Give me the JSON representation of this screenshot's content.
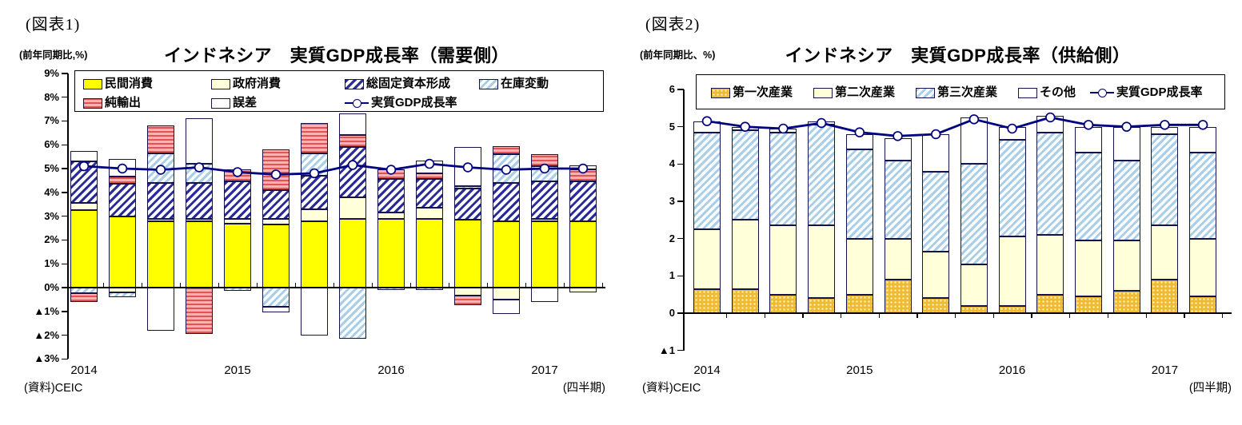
{
  "colors": {
    "line_navy": "#00007f",
    "bar_yellow": "#ffff00",
    "bar_cream": "#ffffd9",
    "hatch_navy": "#2a2a99",
    "hatch_ltblue": "#a9cfe8",
    "stripe_red": "#dd5555",
    "gold": "#eebb33"
  },
  "chart_data": [
    {
      "type": "bar",
      "stacked": true,
      "fig_label": "(図表1)",
      "unit_label": "(前年同期比,%)",
      "title": "インドネシア　実質GDP成長率（需要側）",
      "source": "(資料)CEIC",
      "freq_label": "(四半期)",
      "ylim": [
        -3,
        9
      ],
      "ytick_labels": [
        "9%",
        "8%",
        "7%",
        "6%",
        "5%",
        "4%",
        "3%",
        "2%",
        "1%",
        "0%",
        "▲1%",
        "▲2%",
        "▲3%"
      ],
      "x_tick_labels": [
        "2014",
        "2015",
        "2016",
        "2017"
      ],
      "categories": [
        "2014Q1",
        "2014Q2",
        "2014Q3",
        "2014Q4",
        "2015Q1",
        "2015Q2",
        "2015Q3",
        "2015Q4",
        "2016Q1",
        "2016Q2",
        "2016Q3",
        "2016Q4",
        "2017Q1",
        "2017Q2"
      ],
      "series": [
        {
          "key": "private-consumption",
          "label": "民間消費",
          "fill": "yellow",
          "values": [
            3.25,
            3.0,
            2.8,
            2.8,
            2.7,
            2.65,
            2.8,
            2.9,
            2.9,
            2.9,
            2.85,
            2.8,
            2.8,
            2.8
          ]
        },
        {
          "key": "government-consumption",
          "label": "政府消費",
          "fill": "cream",
          "values": [
            0.3,
            -0.2,
            0.1,
            0.1,
            0.2,
            0.25,
            0.5,
            0.9,
            0.25,
            0.45,
            -0.35,
            -0.5,
            0.1,
            -0.2
          ]
        },
        {
          "key": "gross-fixed-capital-formation",
          "label": "総固定資本形成",
          "fill": "navy-hatch",
          "values": [
            1.75,
            1.35,
            1.5,
            1.5,
            1.55,
            1.2,
            1.4,
            2.1,
            1.4,
            1.2,
            1.3,
            1.6,
            1.55,
            1.65
          ]
        },
        {
          "key": "inventory-change",
          "label": "在庫変動",
          "fill": "ltblue-hatch",
          "values": [
            -0.25,
            -0.2,
            1.25,
            0.8,
            -0.15,
            -0.8,
            0.95,
            -2.15,
            -0.1,
            -0.1,
            0.1,
            1.2,
            0.65,
            0
          ]
        },
        {
          "key": "net-exports",
          "label": "純輸出",
          "fill": "red-stripe",
          "values": [
            -0.35,
            0.3,
            1.15,
            -1.95,
            0.5,
            1.7,
            1.25,
            0.5,
            0.4,
            0.25,
            -0.4,
            0.35,
            0.5,
            0.5
          ]
        },
        {
          "key": "error",
          "label": "誤差",
          "fill": "white",
          "values": [
            0.45,
            0.75,
            -1.8,
            1.9,
            0,
            -0.25,
            -2.0,
            0.9,
            0,
            0.55,
            1.65,
            -0.6,
            -0.6,
            0.2
          ]
        }
      ],
      "line": {
        "key": "real-gdp-growth",
        "label": "実質GDP成長率",
        "values": [
          5.1,
          5.0,
          4.95,
          5.05,
          4.85,
          4.75,
          4.8,
          5.15,
          4.95,
          5.2,
          5.05,
          4.95,
          5.0,
          5.0
        ]
      },
      "legend": [
        {
          "label": "民間消費",
          "fill": "yellow"
        },
        {
          "label": "政府消費",
          "fill": "cream"
        },
        {
          "label": "総固定資本形成",
          "fill": "navy-hatch"
        },
        {
          "label": "在庫変動",
          "fill": "ltblue-hatch"
        },
        {
          "label": "純輸出",
          "fill": "red-stripe"
        },
        {
          "label": "誤差",
          "fill": "white"
        },
        {
          "label": "実質GDP成長率",
          "type": "line"
        }
      ]
    },
    {
      "type": "bar",
      "stacked": true,
      "fig_label": "(図表2)",
      "unit_label": "(前年同期比、%)",
      "title": "インドネシア　実質GDP成長率（供給側）",
      "source": "(資料)CEIC",
      "freq_label": "(四半期)",
      "ylim": [
        -1,
        6
      ],
      "ytick_labels": [
        "6",
        "5",
        "4",
        "3",
        "2",
        "1",
        "0",
        "▲1"
      ],
      "x_tick_labels": [
        "2014",
        "2015",
        "2016",
        "2017"
      ],
      "categories": [
        "2014Q1",
        "2014Q2",
        "2014Q3",
        "2014Q4",
        "2015Q1",
        "2015Q2",
        "2015Q3",
        "2015Q4",
        "2016Q1",
        "2016Q2",
        "2016Q3",
        "2016Q4",
        "2017Q1",
        "2017Q2"
      ],
      "series": [
        {
          "key": "primary-industry",
          "label": "第一次産業",
          "fill": "gold-dots",
          "values": [
            0.65,
            0.65,
            0.5,
            0.4,
            0.5,
            0.9,
            0.4,
            0.2,
            0.2,
            0.5,
            0.45,
            0.6,
            0.9,
            0.45
          ]
        },
        {
          "key": "secondary-industry",
          "label": "第二次産業",
          "fill": "cream",
          "values": [
            1.6,
            1.85,
            1.85,
            1.95,
            1.5,
            1.1,
            1.25,
            1.1,
            1.85,
            1.6,
            1.5,
            1.35,
            1.45,
            1.55
          ]
        },
        {
          "key": "tertiary-industry",
          "label": "第三次産業",
          "fill": "ltblue-hatch",
          "values": [
            2.6,
            2.4,
            2.5,
            2.7,
            2.4,
            2.1,
            2.15,
            2.7,
            2.6,
            2.75,
            2.35,
            2.15,
            2.45,
            2.3
          ]
        },
        {
          "key": "others",
          "label": "その他",
          "fill": "white",
          "values": [
            0.3,
            0.1,
            0.1,
            0.1,
            0.4,
            0.6,
            1.0,
            1.25,
            0.35,
            0.45,
            0.7,
            0.9,
            0.2,
            0.7
          ]
        }
      ],
      "line": {
        "key": "real-gdp-growth",
        "label": "実質GDP成長率",
        "values": [
          5.15,
          5.0,
          4.95,
          5.1,
          4.85,
          4.75,
          4.8,
          5.2,
          4.95,
          5.25,
          5.05,
          5.0,
          5.05,
          5.05
        ]
      },
      "legend": [
        {
          "label": "第一次産業",
          "fill": "gold-dots"
        },
        {
          "label": "第二次産業",
          "fill": "cream"
        },
        {
          "label": "第三次産業",
          "fill": "ltblue-hatch"
        },
        {
          "label": "その他",
          "fill": "white"
        },
        {
          "label": "実質GDP成長率",
          "type": "line"
        }
      ]
    }
  ]
}
